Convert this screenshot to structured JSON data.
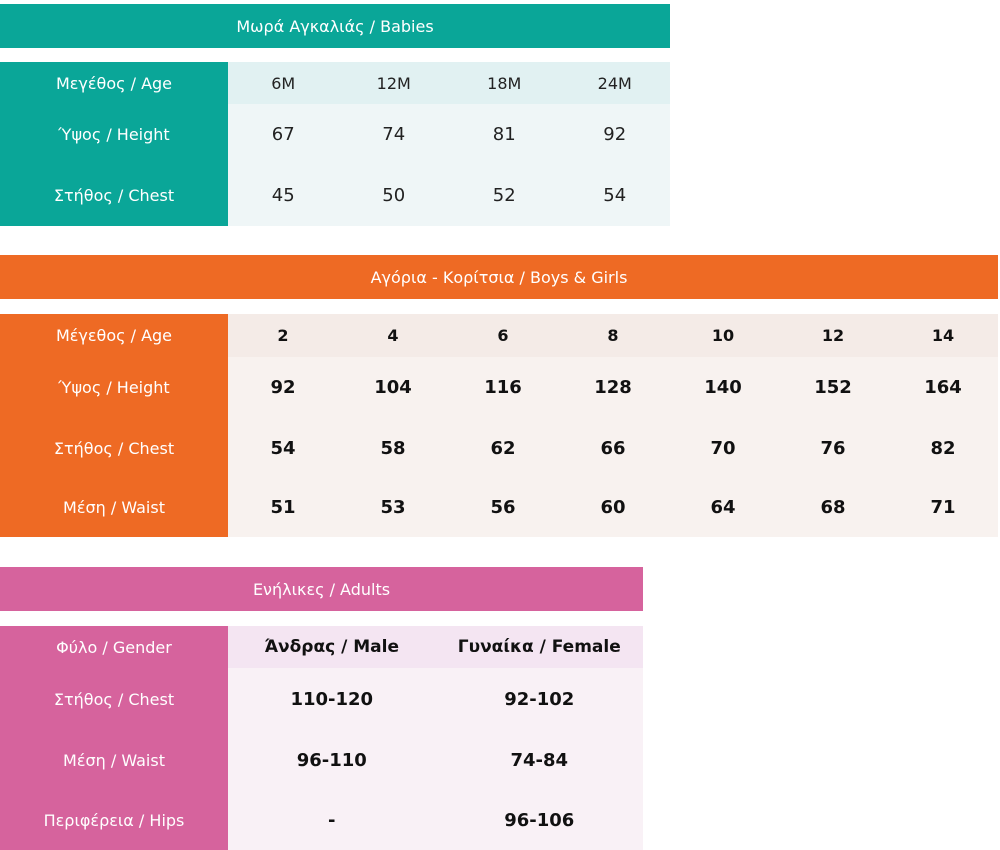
{
  "babies": {
    "title": "Μωρά Αγκαλιάς / Babies",
    "color": "#0aa698",
    "header": {
      "label": "Μεγέθος / Age",
      "values": [
        "6M",
        "12M",
        "18M",
        "24M"
      ]
    },
    "rows": [
      {
        "label": "Ύψος / Height",
        "values": [
          "67",
          "74",
          "81",
          "92"
        ]
      },
      {
        "label": "Στήθος / Chest",
        "values": [
          "45",
          "50",
          "52",
          "54"
        ]
      }
    ]
  },
  "kids": {
    "title": "Αγόρια - Κορίτσια / Boys & Girls",
    "color": "#ee6a24",
    "header": {
      "label": "Μέγεθος / Age",
      "values": [
        "2",
        "4",
        "6",
        "8",
        "10",
        "12",
        "14"
      ]
    },
    "rows": [
      {
        "label": "Ύψος / Height",
        "values": [
          "92",
          "104",
          "116",
          "128",
          "140",
          "152",
          "164"
        ]
      },
      {
        "label": "Στήθος / Chest",
        "values": [
          "54",
          "58",
          "62",
          "66",
          "70",
          "76",
          "82"
        ]
      },
      {
        "label": "Μέση / Waist",
        "values": [
          "51",
          "53",
          "56",
          "60",
          "64",
          "68",
          "71"
        ]
      }
    ]
  },
  "adults": {
    "title": "Ενήλικες / Adults",
    "color": "#d6639d",
    "header": {
      "label": "Φύλο / Gender",
      "values": [
        "Άνδρας / Male",
        "Γυναίκα / Female"
      ]
    },
    "rows": [
      {
        "label": "Στήθος / Chest",
        "values": [
          "110-120",
          "92-102"
        ]
      },
      {
        "label": "Μέση / Waist",
        "values": [
          "96-110",
          "74-84"
        ]
      },
      {
        "label": "Περιφέρεια / Hips",
        "values": [
          "-",
          "96-106"
        ]
      }
    ]
  }
}
